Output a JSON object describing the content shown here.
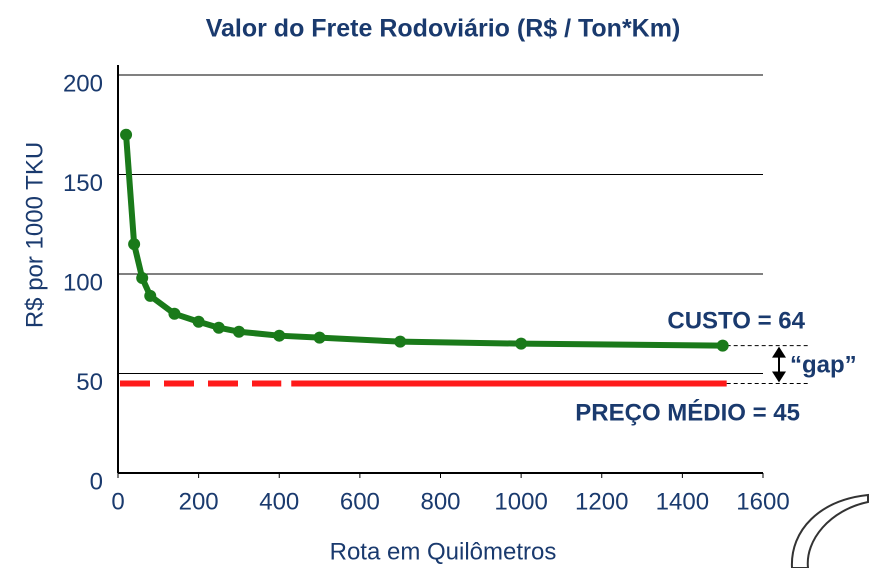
{
  "chart_data": {
    "type": "line",
    "title": "Valor do Frete Rodoviário (R$ / Ton*Km)",
    "x_label": "Rota em Quilômetros",
    "y_label": "R$ por 1000 TKU",
    "xlim": [
      0,
      1600
    ],
    "xticks": [
      0,
      200,
      400,
      600,
      800,
      1000,
      1200,
      1400,
      1600
    ],
    "ylim": [
      0,
      200
    ],
    "yticks": [
      0,
      50,
      100,
      150,
      200
    ],
    "grid": true,
    "series": [
      {
        "name": "CUSTO",
        "color": "#1a7a1a",
        "x": [
          20,
          40,
          60,
          80,
          140,
          200,
          250,
          300,
          400,
          500,
          700,
          1000,
          1500
        ],
        "values": [
          170,
          115,
          98,
          89,
          80,
          76,
          73,
          71,
          69,
          68,
          66,
          65,
          64
        ]
      }
    ],
    "reference_line": {
      "name": "PREÇO MÉDIO",
      "value": 45,
      "color": "#ff1a1a"
    },
    "annotations": {
      "cost": "CUSTO = 64",
      "price": "PREÇO MÉDIO = 45",
      "gap": "“gap”"
    }
  }
}
